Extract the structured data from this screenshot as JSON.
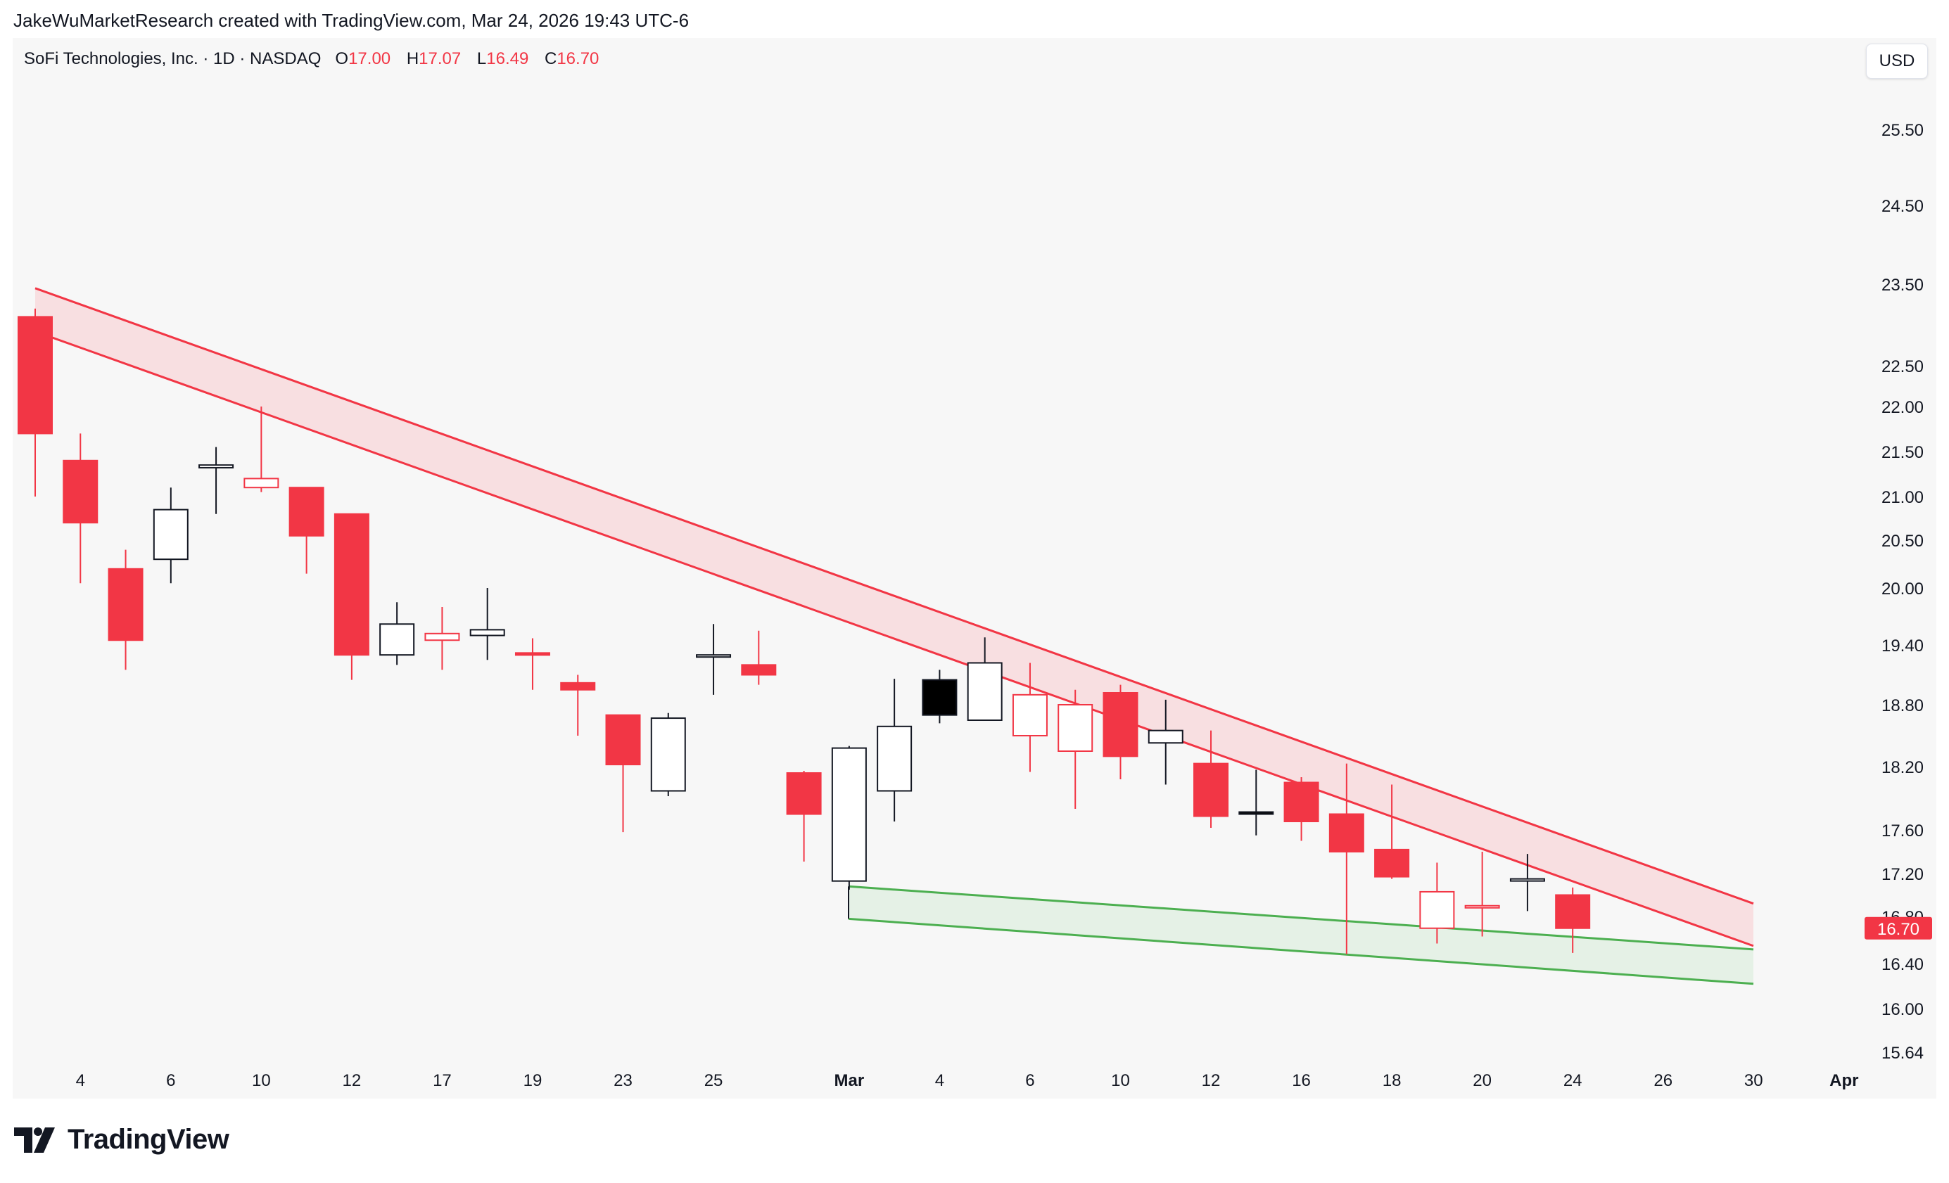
{
  "header": {
    "credit": "JakeWuMarketResearch created with TradingView.com, Mar 24, 2026 19:43 UTC-6"
  },
  "symbol": {
    "name": "SoFi Technologies, Inc. · 1D · NASDAQ",
    "open_label": "O",
    "open": "17.00",
    "high_label": "H",
    "high": "17.07",
    "low_label": "L",
    "low": "16.49",
    "close_label": "C",
    "close": "16.70"
  },
  "currency": "USD",
  "brand": {
    "name": "TradingView",
    "icon": "tradingview-logo-icon"
  },
  "colors": {
    "up_body": "#ffffff",
    "up_border": "#131722",
    "down_body": "#f23645",
    "upper_band": "#f23645",
    "upper_band_fill": "#f8d7da",
    "lower_band": "#4caf50",
    "lower_band_fill": "#e2f0e3",
    "background": "#f7f7f7"
  },
  "chart_data": {
    "type": "candlestick",
    "price_axis_labels": [
      "25.50",
      "24.50",
      "23.50",
      "22.50",
      "22.00",
      "21.50",
      "21.00",
      "20.50",
      "20.00",
      "19.40",
      "18.80",
      "18.20",
      "17.60",
      "17.20",
      "16.80",
      "16.40",
      "16.00",
      "15.64"
    ],
    "time_axis_labels": [
      "4",
      "6",
      "10",
      "12",
      "17",
      "19",
      "23",
      "25",
      "Mar",
      "4",
      "6",
      "10",
      "12",
      "16",
      "18",
      "20",
      "24",
      "26",
      "30",
      "Apr"
    ],
    "last_price": "16.70",
    "series": [
      {
        "o": 23.1,
        "h": 23.2,
        "l": 21.0,
        "c": 21.7,
        "color": "red"
      },
      {
        "o": 21.4,
        "h": 21.7,
        "l": 20.05,
        "c": 20.7,
        "color": "red"
      },
      {
        "o": 20.2,
        "h": 20.4,
        "l": 19.15,
        "c": 19.45,
        "color": "red"
      },
      {
        "o": 20.3,
        "h": 21.1,
        "l": 20.05,
        "c": 20.85,
        "color": "black",
        "fill": "hollow"
      },
      {
        "o": 21.32,
        "h": 21.55,
        "l": 20.8,
        "c": 21.35,
        "color": "black",
        "fill": "hollow"
      },
      {
        "o": 21.1,
        "h": 22.0,
        "l": 21.05,
        "c": 21.2,
        "color": "red",
        "fill": "hollow"
      },
      {
        "o": 21.1,
        "h": 21.1,
        "l": 20.15,
        "c": 20.55,
        "color": "red"
      },
      {
        "o": 20.8,
        "h": 20.8,
        "l": 19.05,
        "c": 19.3,
        "color": "red"
      },
      {
        "o": 19.3,
        "h": 19.85,
        "l": 19.2,
        "c": 19.62,
        "color": "black",
        "fill": "hollow"
      },
      {
        "o": 19.45,
        "h": 19.8,
        "l": 19.15,
        "c": 19.52,
        "color": "red",
        "fill": "hollow"
      },
      {
        "o": 19.5,
        "h": 20.0,
        "l": 19.25,
        "c": 19.56,
        "color": "black",
        "fill": "hollow"
      },
      {
        "o": 19.32,
        "h": 19.47,
        "l": 18.95,
        "c": 19.3,
        "color": "red"
      },
      {
        "o": 19.02,
        "h": 19.1,
        "l": 18.5,
        "c": 18.95,
        "color": "red"
      },
      {
        "o": 18.7,
        "h": 18.7,
        "l": 17.58,
        "c": 18.22,
        "color": "red"
      },
      {
        "o": 17.97,
        "h": 18.72,
        "l": 17.92,
        "c": 18.67,
        "color": "black",
        "fill": "hollow"
      },
      {
        "o": 19.3,
        "h": 19.62,
        "l": 18.9,
        "c": 19.3,
        "color": "black",
        "fill": "hollow"
      },
      {
        "o": 19.2,
        "h": 19.55,
        "l": 19.0,
        "c": 19.1,
        "color": "red"
      },
      {
        "o": 18.14,
        "h": 18.16,
        "l": 17.31,
        "c": 17.75,
        "color": "red"
      },
      {
        "o": 17.13,
        "h": 18.4,
        "l": 17.05,
        "c": 18.38,
        "color": "black",
        "fill": "hollow"
      },
      {
        "o": 17.97,
        "h": 19.06,
        "l": 17.68,
        "c": 18.59,
        "color": "black",
        "fill": "hollow"
      },
      {
        "o": 18.7,
        "h": 19.15,
        "l": 18.62,
        "c": 19.05,
        "color": "black",
        "fill": "solid"
      },
      {
        "o": 18.65,
        "h": 19.48,
        "l": 18.65,
        "c": 19.22,
        "color": "black",
        "fill": "hollow"
      },
      {
        "o": 18.5,
        "h": 19.22,
        "l": 18.15,
        "c": 18.9,
        "color": "red",
        "fill": "hollow"
      },
      {
        "o": 18.35,
        "h": 18.95,
        "l": 17.8,
        "c": 18.8,
        "color": "red",
        "fill": "hollow"
      },
      {
        "o": 18.92,
        "h": 19.0,
        "l": 18.08,
        "c": 18.3,
        "color": "red"
      },
      {
        "o": 18.43,
        "h": 18.85,
        "l": 18.03,
        "c": 18.55,
        "color": "black",
        "fill": "hollow"
      },
      {
        "o": 18.23,
        "h": 18.55,
        "l": 17.62,
        "c": 17.73,
        "color": "red"
      },
      {
        "o": 17.77,
        "h": 18.17,
        "l": 17.55,
        "c": 17.77,
        "color": "black",
        "fill": "solid"
      },
      {
        "o": 18.05,
        "h": 18.1,
        "l": 17.5,
        "c": 17.68,
        "color": "red"
      },
      {
        "o": 17.75,
        "h": 18.23,
        "l": 16.48,
        "c": 17.4,
        "color": "red"
      },
      {
        "o": 17.42,
        "h": 18.03,
        "l": 17.15,
        "c": 17.17,
        "color": "red"
      },
      {
        "o": 17.03,
        "h": 17.3,
        "l": 16.57,
        "c": 16.7,
        "color": "red",
        "fill": "hollow"
      },
      {
        "o": 16.9,
        "h": 17.4,
        "l": 16.63,
        "c": 16.9,
        "color": "red",
        "fill": "hollow"
      },
      {
        "o": 17.15,
        "h": 17.38,
        "l": 16.85,
        "c": 17.15,
        "color": "black",
        "fill": "hollow"
      },
      {
        "o": 17.0,
        "h": 17.07,
        "l": 16.49,
        "c": 16.7,
        "color": "red"
      }
    ],
    "trendlines": [
      {
        "name": "upper-band-top",
        "y1": 23.45,
        "y2": 16.92,
        "color": "red"
      },
      {
        "name": "upper-band-bottom",
        "y1": 22.92,
        "y2": 16.55,
        "color": "red"
      },
      {
        "name": "lower-band-top",
        "y1": 17.08,
        "y2": 16.52,
        "color": "green"
      },
      {
        "name": "lower-band-bottom",
        "y1": 16.78,
        "y2": 16.22,
        "color": "green"
      }
    ]
  }
}
